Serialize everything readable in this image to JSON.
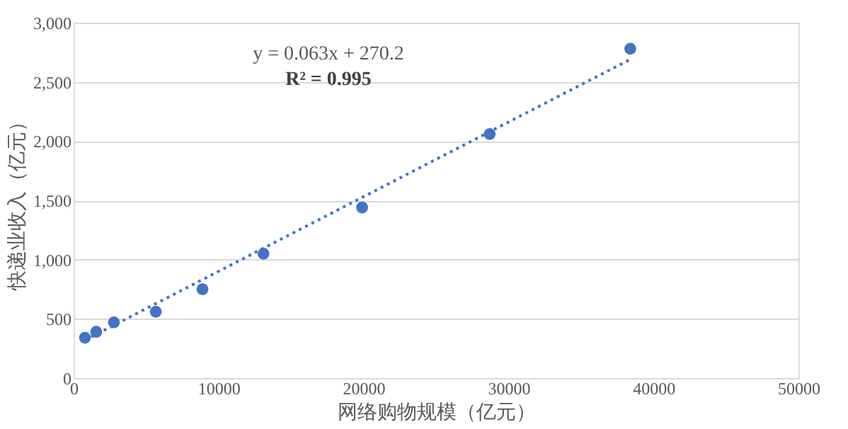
{
  "chart_data": {
    "type": "scatter",
    "xlabel": "网络购物规模（亿元）",
    "ylabel": "快递业收入（亿元）",
    "x": [
      780,
      1560,
      2780,
      5670,
      8890,
      13100,
      19900,
      28700,
      38400
    ],
    "series": [
      {
        "color": "#4472c4",
        "values": [
          340,
          390,
          470,
          560,
          750,
          1050,
          1440,
          2060,
          2780
        ],
        "marker": "circle"
      },
      {
        "type": "line",
        "color": "#4472c4",
        "x": [
          780,
          38400
        ],
        "values": [
          320,
          2690
        ],
        "line_style": "dotted",
        "marker": "none"
      }
    ],
    "annotations": [
      "y = 0.063x + 270.2",
      "R² = 0.995"
    ],
    "xlim": [
      0,
      50000
    ],
    "xticks": [
      0,
      10000,
      20000,
      30000,
      40000,
      50000
    ],
    "ylim": [
      0,
      3000
    ],
    "yticks": [
      {
        "value": 0,
        "label": "0"
      },
      {
        "value": 500,
        "label": "500"
      },
      {
        "value": 1000,
        "label": "1,000"
      },
      {
        "value": 1500,
        "label": "1,500"
      },
      {
        "value": 2000,
        "label": "2,000"
      },
      {
        "value": 2500,
        "label": "2,500"
      },
      {
        "value": 3000,
        "label": "3,000"
      }
    ],
    "grid": "y"
  }
}
